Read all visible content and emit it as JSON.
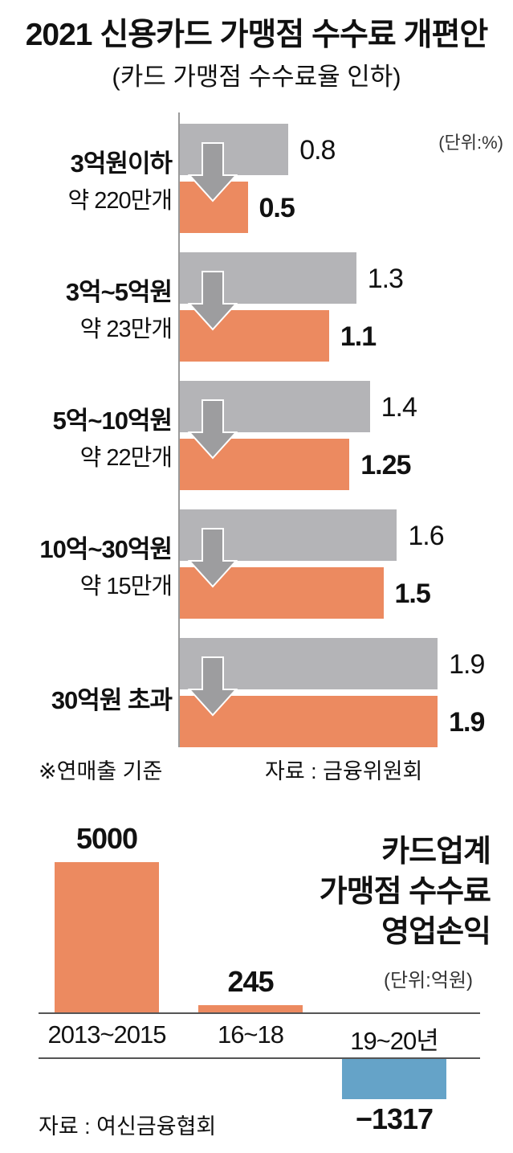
{
  "chart_data": [
    {
      "type": "bar",
      "title": "2021 신용카드 가맹점 수수료 개편안",
      "subtitle": "(카드 가맹점 수수료율 인하)",
      "unit": "(단위:%)",
      "categories": [
        "3억원이하",
        "3억~5억원",
        "5억~10억원",
        "10억~30억원",
        "30억원 초과"
      ],
      "category_counts": [
        "약 220만개",
        "약 23만개",
        "약 22만개",
        "약 15만개",
        ""
      ],
      "series": [
        {
          "values": [
            0.8,
            1.3,
            1.4,
            1.6,
            1.9
          ],
          "value_labels": [
            "0.8",
            "1.3",
            "1.4",
            "1.6",
            "1.9"
          ],
          "color": "#b4b4b7"
        },
        {
          "values": [
            0.5,
            1.1,
            1.25,
            1.5,
            1.9
          ],
          "value_labels": [
            "0.5",
            "1.1",
            "1.25",
            "1.5",
            "1.9"
          ],
          "color": "#ec8a60"
        }
      ],
      "xlim": [
        0,
        2.1
      ],
      "note": "※연매출 기준",
      "source": "자료 : 금융위원회"
    },
    {
      "type": "bar",
      "title_lines": [
        "카드업계",
        "가맹점 수수료",
        "영업손익"
      ],
      "unit": "(단위:억원)",
      "categories": [
        "2013~2015",
        "16~18",
        "19~20년"
      ],
      "values": [
        5000,
        245,
        -1317
      ],
      "value_labels": [
        "5000",
        "245",
        "−1317"
      ],
      "colors": [
        "#ec8a60",
        "#ec8a60",
        "#65a3c8"
      ],
      "source": "자료 : 여신금융협회"
    }
  ]
}
